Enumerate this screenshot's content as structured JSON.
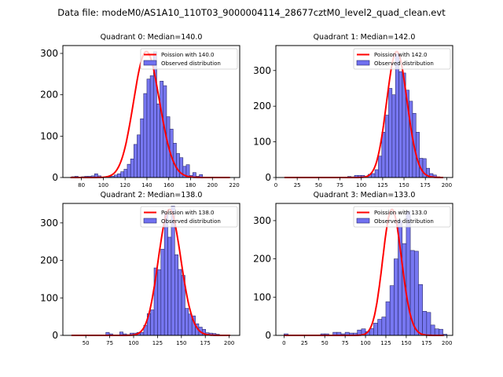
{
  "figure": {
    "title": "Data file: modeM0/AS1A10_110T03_9000004114_28677cztM0_level2_quad_clean.evt"
  },
  "colors": {
    "bar_fill": "#7070f0",
    "bar_edge": "#2a2a6a",
    "poisson_line": "#ff0000",
    "axes": "#000000"
  },
  "chart_data": [
    {
      "type": "bar",
      "title": "Quadrant 0: Median=140.0",
      "median": 140.0,
      "xlim": [
        63,
        225
      ],
      "ylim": [
        0,
        319
      ],
      "xticks": [
        80,
        100,
        120,
        140,
        160,
        180,
        200,
        220
      ],
      "yticks": [
        0,
        100,
        200,
        300
      ],
      "legend": [
        "Poission with 140.0",
        "Observed distribution"
      ],
      "legend_position": "upper right",
      "bin_width": 3.0,
      "bins_start": 71,
      "bar_values": [
        2,
        3,
        0,
        2,
        3,
        3,
        4,
        9,
        4,
        0,
        0,
        2,
        3,
        6,
        9,
        14,
        20,
        32,
        45,
        80,
        103,
        142,
        203,
        238,
        246,
        304,
        178,
        233,
        222,
        147,
        117,
        83,
        58,
        48,
        27,
        31,
        5,
        12,
        3,
        7,
        0,
        0,
        0,
        0,
        0,
        0,
        0,
        0,
        0
      ],
      "series": [
        {
          "name": "Poission with 140.0",
          "lambda": 140.0,
          "x_range": [
            70,
            216
          ]
        }
      ]
    },
    {
      "type": "bar",
      "title": "Quadrant 1: Median=142.0",
      "median": 142.0,
      "xlim": [
        0,
        207
      ],
      "ylim": [
        0,
        370
      ],
      "xticks": [
        0,
        25,
        50,
        75,
        100,
        125,
        150,
        175,
        200
      ],
      "yticks": [
        0,
        100,
        200,
        300
      ],
      "legend": [
        "Poission with 142.0",
        "Observed distribution"
      ],
      "legend_position": "upper right",
      "bin_width": 4.0,
      "bins_start": 60,
      "bar_values": [
        1,
        0,
        0,
        1,
        0,
        0,
        3,
        2,
        6,
        6,
        6,
        1,
        9,
        11,
        22,
        60,
        127,
        175,
        250,
        232,
        346,
        297,
        293,
        245,
        214,
        180,
        127,
        54,
        53,
        26,
        11,
        7,
        2,
        0
      ],
      "series": [
        {
          "name": "Poission with 142.0",
          "lambda": 142.0,
          "x_range": [
            10,
            196
          ]
        }
      ]
    },
    {
      "type": "bar",
      "title": "Quadrant 2: Median=138.0",
      "median": 138.0,
      "xlim": [
        26,
        211
      ],
      "ylim": [
        0,
        352
      ],
      "xticks": [
        50,
        75,
        100,
        125,
        150,
        175,
        200
      ],
      "yticks": [
        0,
        100,
        200,
        300
      ],
      "legend": [
        "Poission with 138.0",
        "Observed distribution"
      ],
      "legend_position": "upper right",
      "bin_width": 3.6,
      "bins_start": 71,
      "bar_values": [
        8,
        4,
        0,
        0,
        9,
        4,
        2,
        6,
        6,
        8,
        8,
        27,
        58,
        68,
        180,
        175,
        230,
        325,
        262,
        345,
        215,
        176,
        160,
        72,
        57,
        52,
        31,
        22,
        16,
        7,
        6,
        5,
        3,
        0
      ],
      "series": [
        {
          "name": "Poission with 138.0",
          "lambda": 138.0,
          "x_range": [
            35,
            201
          ]
        }
      ]
    },
    {
      "type": "bar",
      "title": "Quadrant 3: Median=133.0",
      "median": 133.0,
      "xlim": [
        -10,
        207
      ],
      "ylim": [
        0,
        345
      ],
      "xticks": [
        0,
        25,
        50,
        75,
        100,
        125,
        150,
        175,
        200
      ],
      "yticks": [
        0,
        100,
        200,
        300
      ],
      "legend": [
        "Poission with 133.0",
        "Observed distribution"
      ],
      "legend_position": "upper right",
      "bin_width": 5.0,
      "bins_start": 0,
      "bar_values": [
        4,
        0,
        0,
        0,
        0,
        0,
        0,
        0,
        0,
        4,
        4,
        0,
        8,
        8,
        4,
        8,
        6,
        6,
        14,
        17,
        10,
        18,
        32,
        42,
        48,
        88,
        130,
        200,
        300,
        240,
        325,
        222,
        220,
        133,
        63,
        60,
        27,
        17,
        16,
        3
      ],
      "series": [
        {
          "name": "Poission with 133.0",
          "lambda": 133.0,
          "x_range": [
            0,
            196
          ]
        }
      ]
    }
  ]
}
